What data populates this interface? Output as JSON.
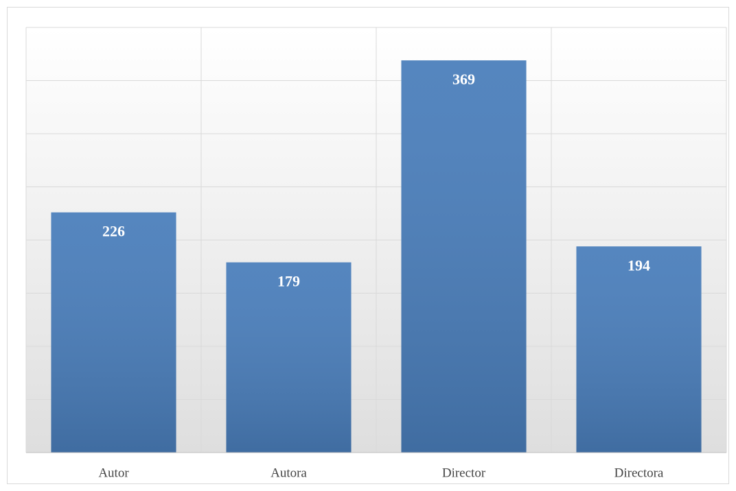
{
  "chart_data": {
    "type": "bar",
    "categories": [
      "Autor",
      "Autora",
      "Director",
      "Directora"
    ],
    "values": [
      226,
      179,
      369,
      194
    ],
    "color": "#4a7ebb",
    "ylim": [
      0,
      400
    ],
    "yticks": [
      0,
      50,
      100,
      150,
      200,
      250,
      300,
      350,
      400
    ],
    "grid": true,
    "data_labels": true
  }
}
